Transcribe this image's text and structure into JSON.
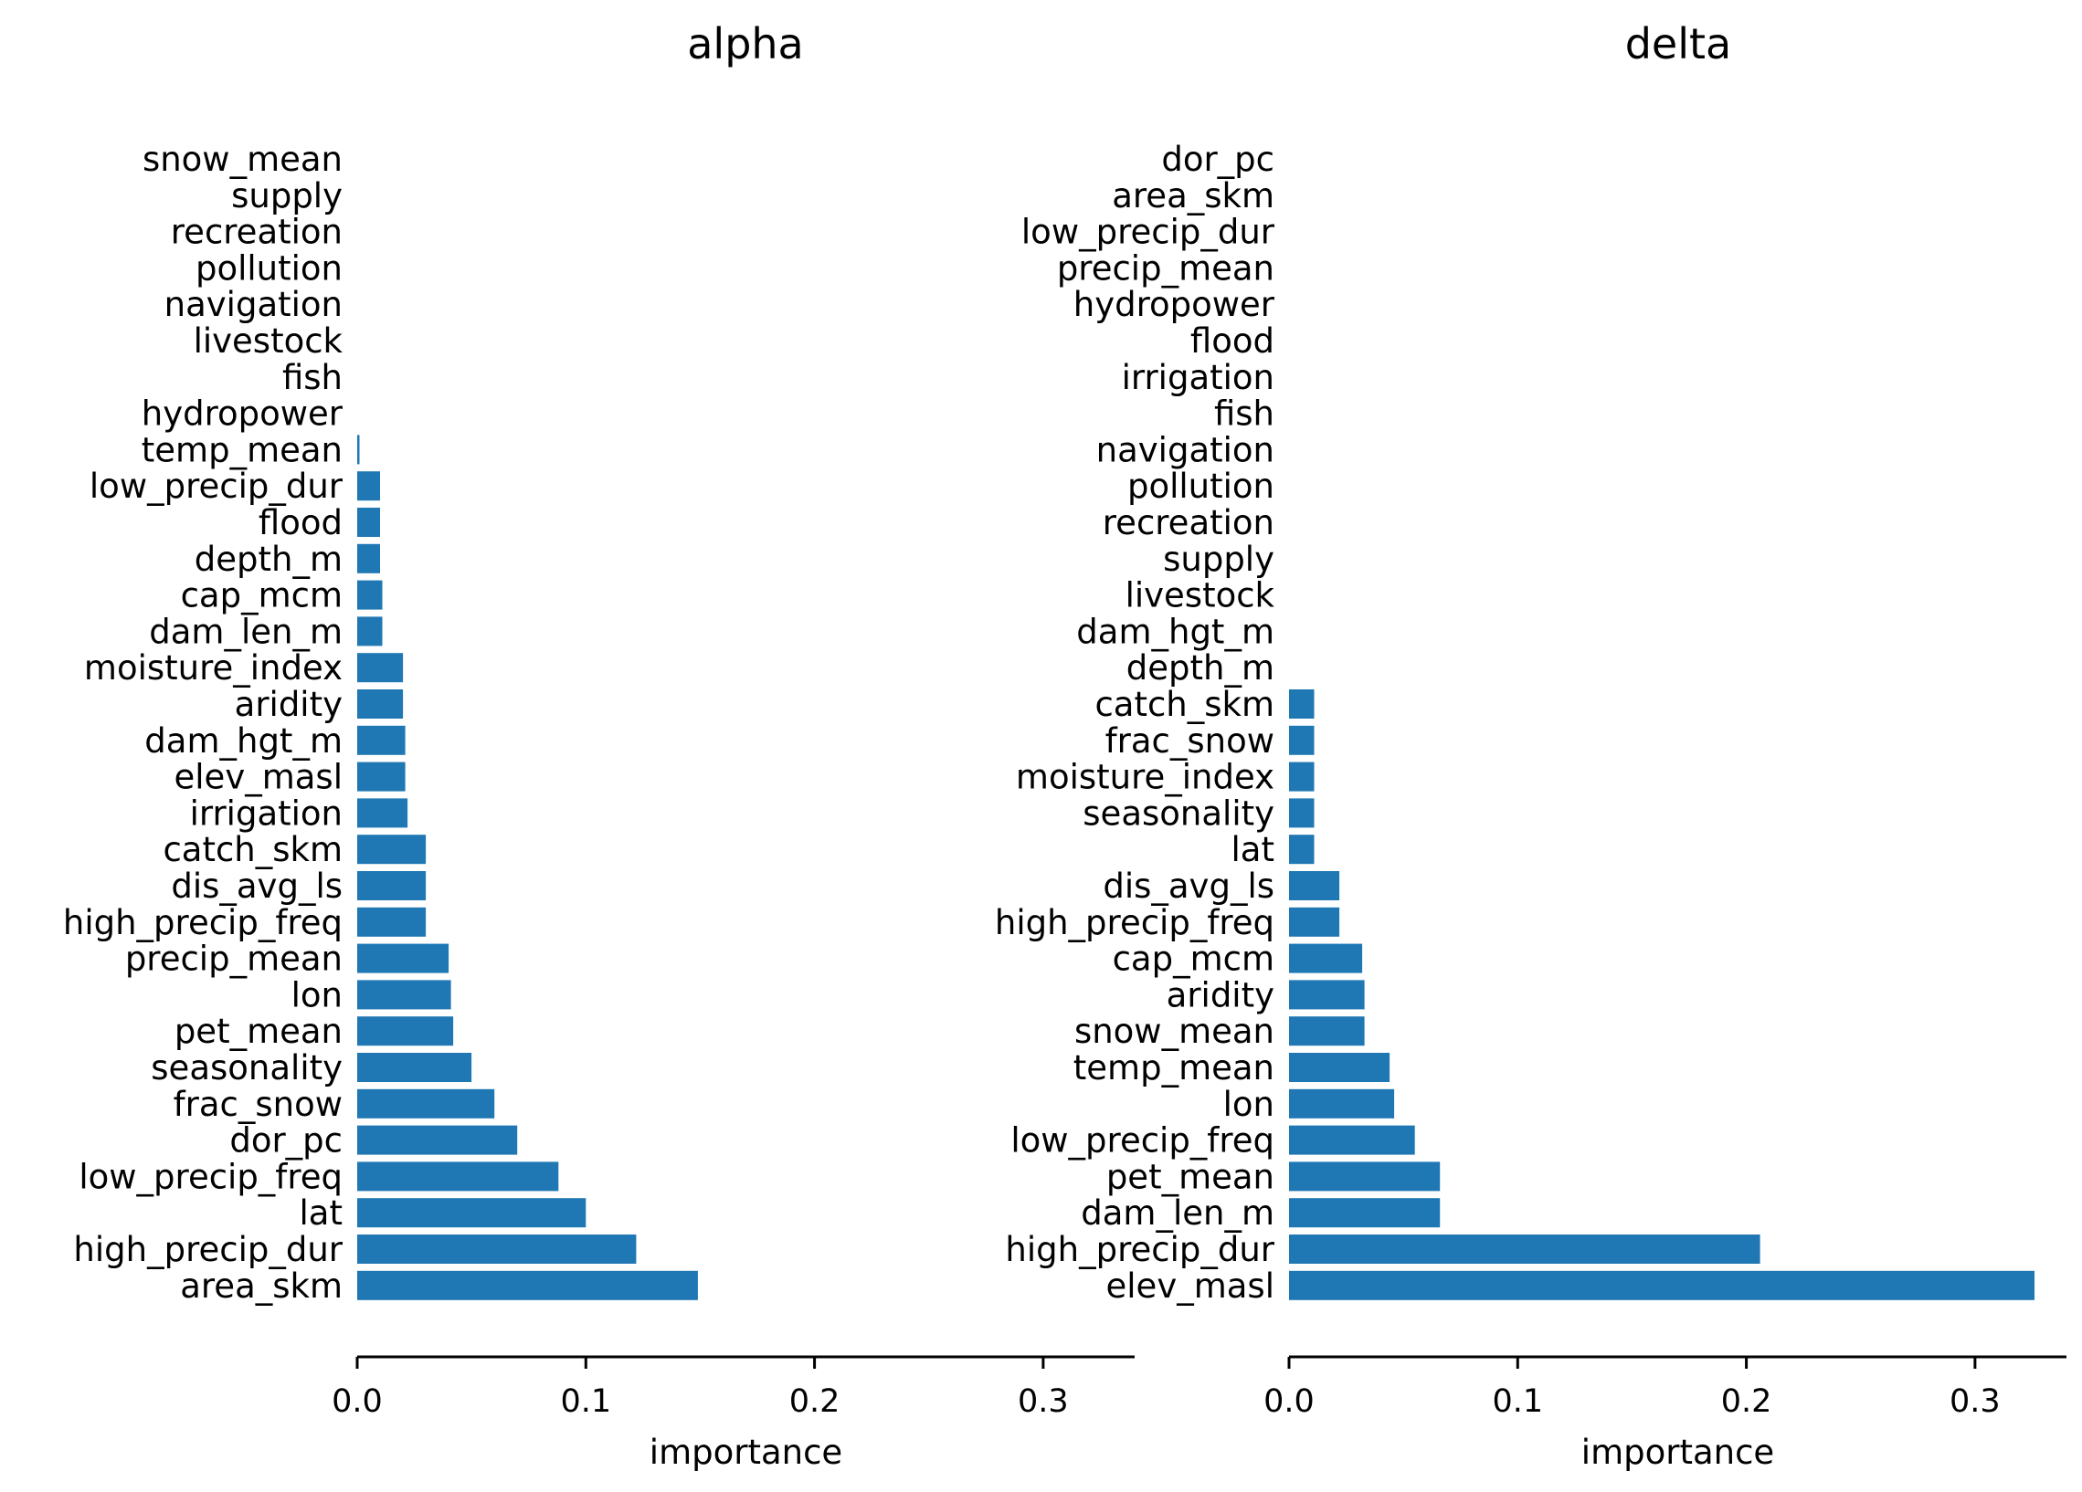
{
  "chart_data": [
    {
      "type": "bar",
      "orientation": "horizontal",
      "title": "alpha",
      "xlabel": "importance",
      "ylabel": "",
      "xlim": [
        0,
        0.34
      ],
      "xticks": [
        0.0,
        0.1,
        0.2,
        0.3
      ],
      "xtick_labels": [
        "0.0",
        "0.1",
        "0.2",
        "0.3"
      ],
      "grid": false,
      "color": "#1f77b4",
      "categories": [
        "snow_mean",
        "supply",
        "recreation",
        "pollution",
        "navigation",
        "livestock",
        "fish",
        "hydropower",
        "temp_mean",
        "low_precip_dur",
        "flood",
        "depth_m",
        "cap_mcm",
        "dam_len_m",
        "moisture_index",
        "aridity",
        "dam_hgt_m",
        "elev_masl",
        "irrigation",
        "catch_skm",
        "dis_avg_ls",
        "high_precip_freq",
        "precip_mean",
        "lon",
        "pet_mean",
        "seasonality",
        "frac_snow",
        "dor_pc",
        "low_precip_freq",
        "lat",
        "high_precip_dur",
        "area_skm"
      ],
      "values": [
        0,
        0,
        0,
        0,
        0,
        0,
        0,
        0,
        0.001,
        0.01,
        0.01,
        0.01,
        0.011,
        0.011,
        0.02,
        0.02,
        0.021,
        0.021,
        0.022,
        0.03,
        0.03,
        0.03,
        0.04,
        0.041,
        0.042,
        0.05,
        0.06,
        0.07,
        0.088,
        0.1,
        0.122,
        0.149
      ]
    },
    {
      "type": "bar",
      "orientation": "horizontal",
      "title": "delta",
      "xlabel": "importance",
      "ylabel": "",
      "xlim": [
        0,
        0.34
      ],
      "xticks": [
        0.0,
        0.1,
        0.2,
        0.3
      ],
      "xtick_labels": [
        "0.0",
        "0.1",
        "0.2",
        "0.3"
      ],
      "grid": false,
      "color": "#1f77b4",
      "categories": [
        "dor_pc",
        "area_skm",
        "low_precip_dur",
        "precip_mean",
        "hydropower",
        "flood",
        "irrigation",
        "fish",
        "navigation",
        "pollution",
        "recreation",
        "supply",
        "livestock",
        "dam_hgt_m",
        "depth_m",
        "catch_skm",
        "frac_snow",
        "moisture_index",
        "seasonality",
        "lat",
        "dis_avg_ls",
        "high_precip_freq",
        "cap_mcm",
        "aridity",
        "snow_mean",
        "temp_mean",
        "lon",
        "low_precip_freq",
        "pet_mean",
        "dam_len_m",
        "high_precip_dur",
        "elev_masl"
      ],
      "values": [
        0,
        0,
        0,
        0,
        0,
        0,
        0,
        0,
        0,
        0,
        0,
        0,
        0,
        0,
        0,
        0.011,
        0.011,
        0.011,
        0.011,
        0.011,
        0.022,
        0.022,
        0.032,
        0.033,
        0.033,
        0.044,
        0.046,
        0.055,
        0.066,
        0.066,
        0.206,
        0.326
      ]
    }
  ]
}
